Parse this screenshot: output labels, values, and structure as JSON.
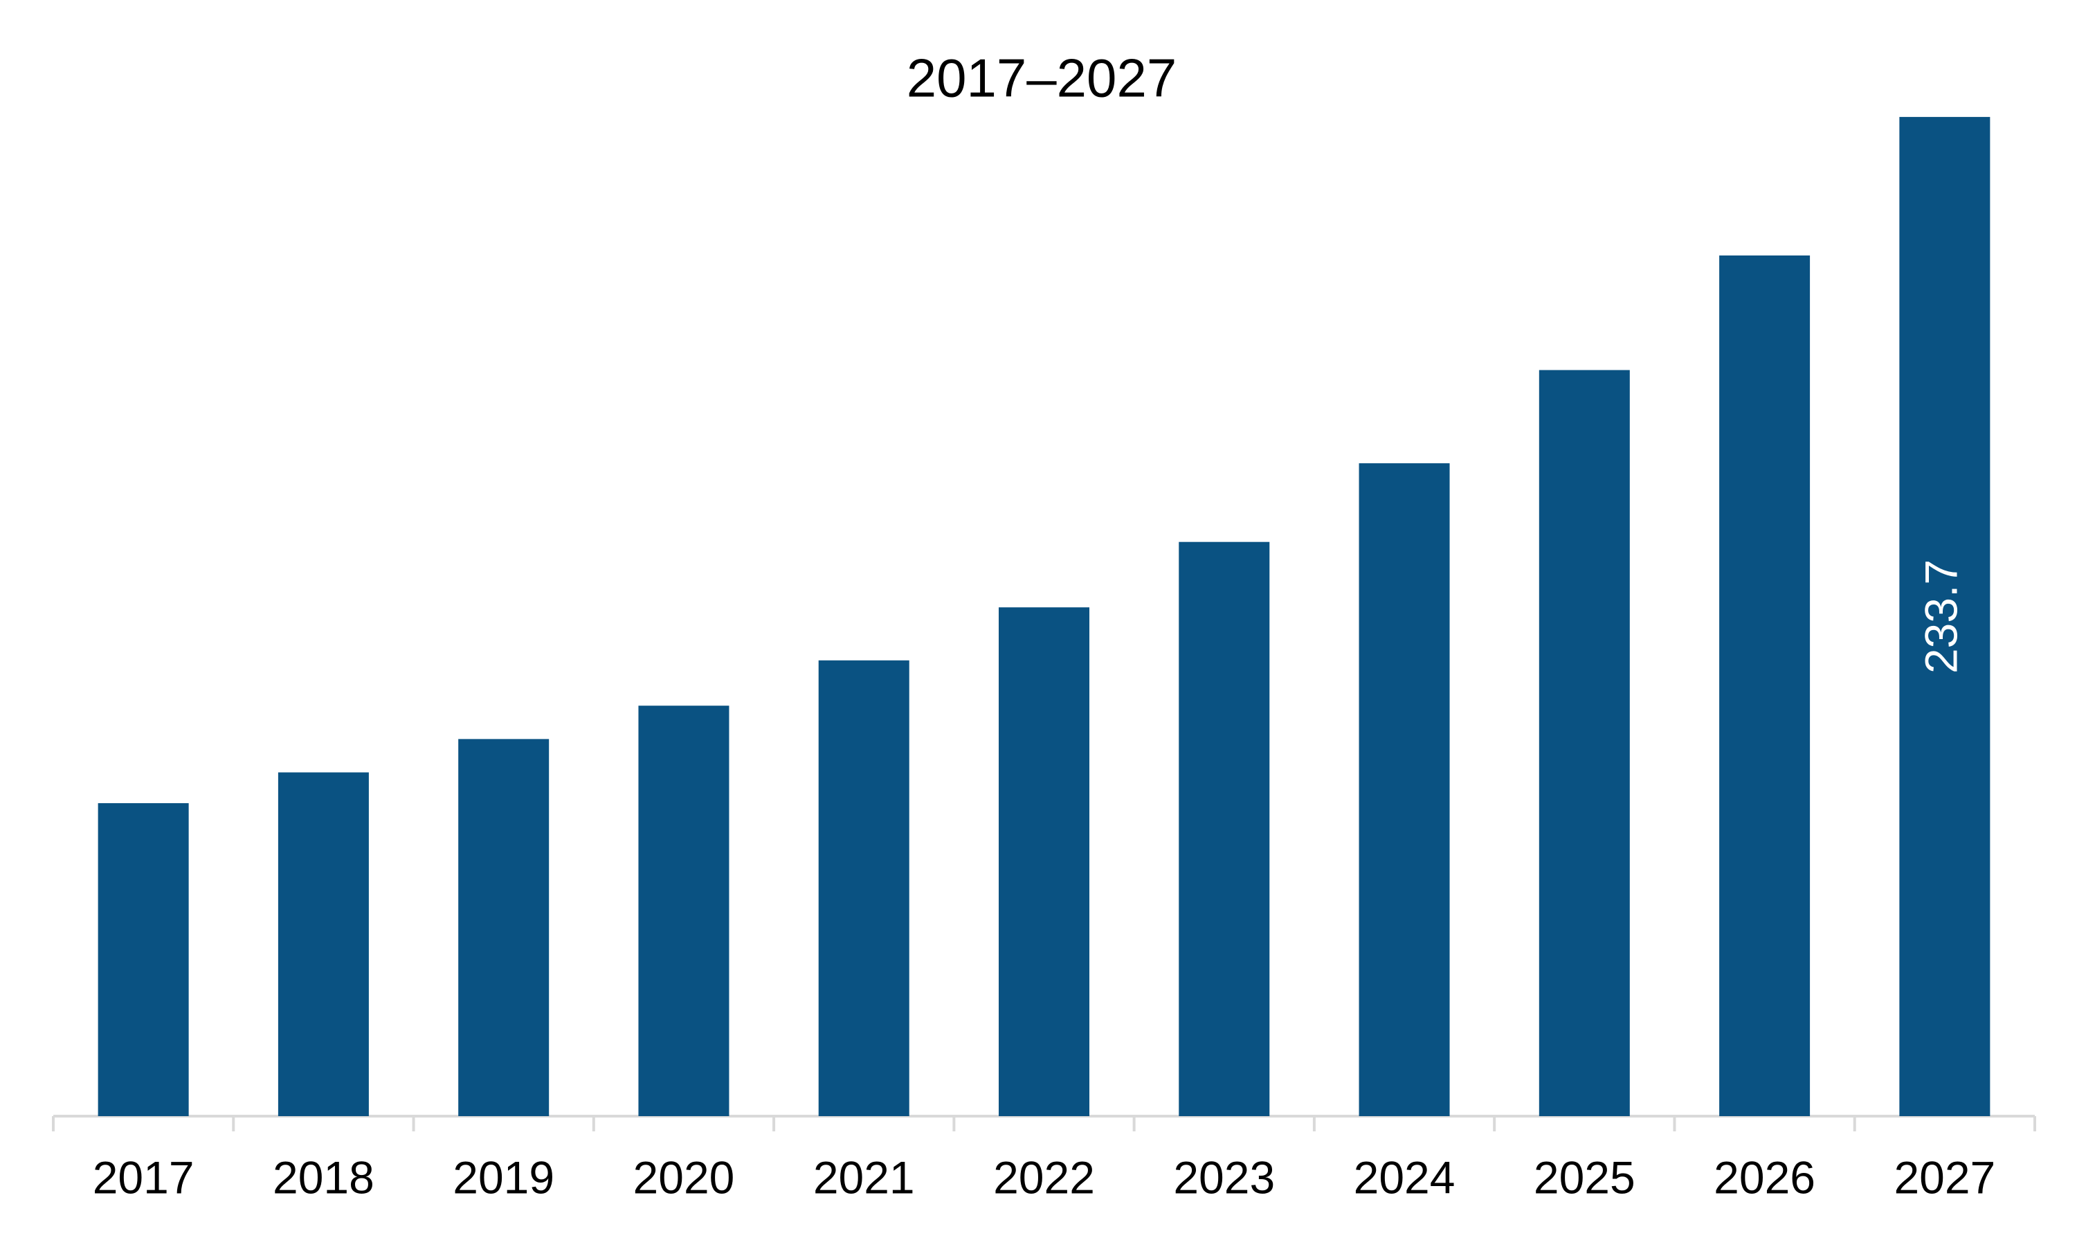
{
  "chart_data": {
    "type": "bar",
    "title": "2017–2027",
    "categories": [
      "2017",
      "2018",
      "2019",
      "2020",
      "2021",
      "2022",
      "2023",
      "2024",
      "2025",
      "2026",
      "2027"
    ],
    "values": [
      73.2,
      80.4,
      88.2,
      96.0,
      106.6,
      119.0,
      134.3,
      152.7,
      174.5,
      201.3,
      233.7
    ],
    "value_labels": [
      null,
      null,
      null,
      null,
      null,
      null,
      null,
      null,
      null,
      null,
      "233.7"
    ],
    "color": "#0a5282",
    "ylim": [
      0,
      240
    ]
  }
}
